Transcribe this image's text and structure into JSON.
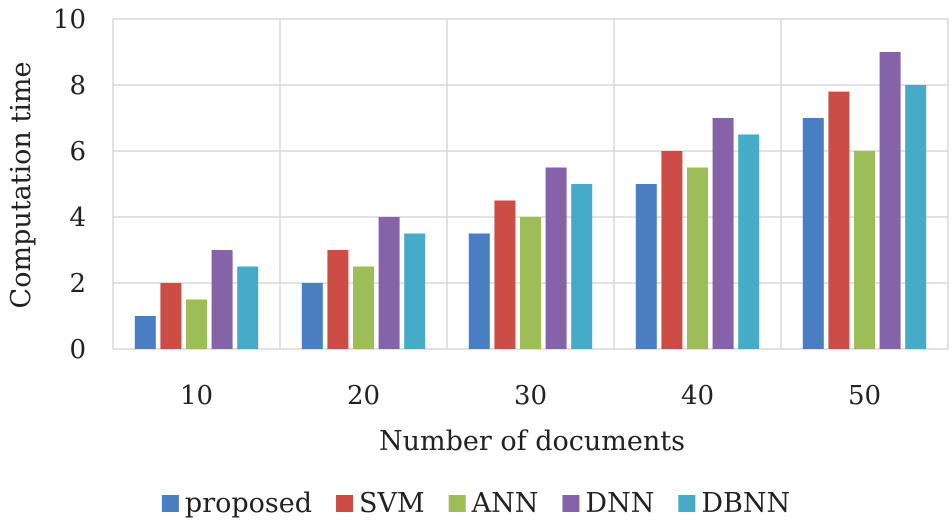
{
  "chart_data": {
    "type": "bar",
    "categories": [
      "10",
      "20",
      "30",
      "40",
      "50"
    ],
    "series": [
      {
        "name": "proposed",
        "color": "#4a7ec2",
        "values": [
          1,
          2,
          3.5,
          5,
          7
        ]
      },
      {
        "name": "SVM",
        "color": "#cc4c46",
        "values": [
          2,
          3,
          4.5,
          6,
          7.8
        ]
      },
      {
        "name": "ANN",
        "color": "#9cbd57",
        "values": [
          1.5,
          2.5,
          4,
          5.5,
          6
        ]
      },
      {
        "name": "DNN",
        "color": "#8463a8",
        "values": [
          3,
          4,
          5.5,
          7,
          9
        ]
      },
      {
        "name": "DBNN",
        "color": "#45abc6",
        "values": [
          2.5,
          3.5,
          5,
          6.5,
          8
        ]
      }
    ],
    "xlabel": "Number of documents",
    "ylabel": "Computation time",
    "ylim": [
      0,
      10
    ],
    "yticks": [
      "0",
      "2",
      "4",
      "6",
      "8",
      "10"
    ],
    "grid": "major both",
    "legend": "bottom"
  }
}
